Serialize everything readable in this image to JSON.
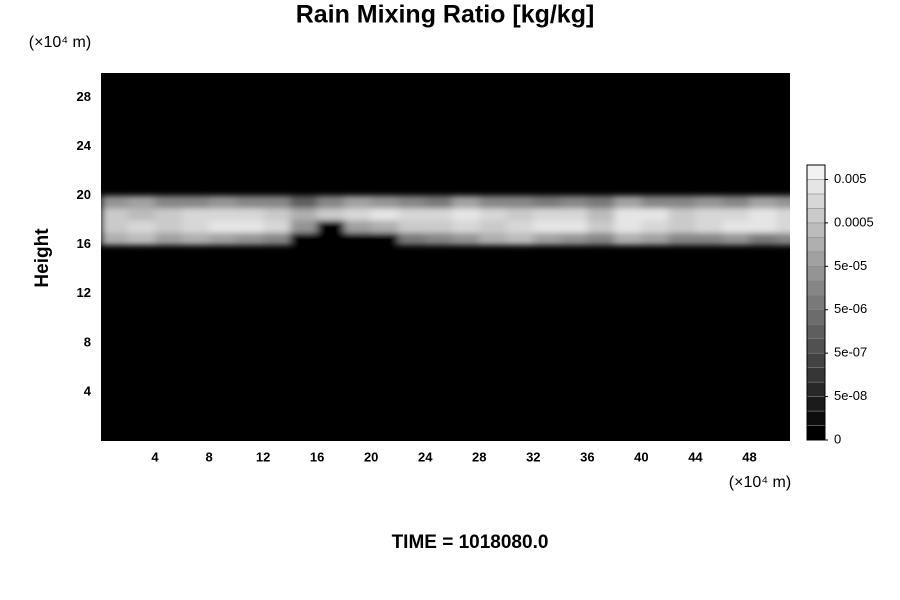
{
  "chart_data": {
    "type": "heatmap",
    "title": "Rain Mixing Ratio [kg/kg]",
    "ylabel": "Height",
    "yunit": "(×10⁴ m)",
    "xunit": "(×10⁴ m)",
    "footer": "TIME = 1018080.0",
    "xlim": [
      0,
      51
    ],
    "ylim": [
      0,
      30
    ],
    "xticks": [
      4,
      8,
      12,
      16,
      20,
      24,
      28,
      32,
      36,
      40,
      44,
      48
    ],
    "yticks": [
      4,
      8,
      12,
      16,
      20,
      24,
      28
    ],
    "background": "#000000",
    "cmap": [
      "#000000",
      "#f2f2f2"
    ],
    "x": [
      1,
      3,
      5,
      7,
      9,
      11,
      13,
      15,
      17,
      19,
      21,
      23,
      25,
      27,
      29,
      31,
      33,
      35,
      37,
      39,
      41,
      43,
      45,
      47,
      49,
      51
    ],
    "y": [
      16.5,
      17.5,
      18.5,
      19.5
    ],
    "z": [
      [
        0.0001,
        0.0002,
        5e-05,
        0.0001,
        5e-05,
        2e-05,
        1e-05,
        0,
        0,
        0,
        0,
        5e-06,
        1e-05,
        2e-05,
        0.0001,
        0.0002,
        5e-05,
        2e-05,
        1e-05,
        0.0001,
        5e-05,
        1e-05,
        1e-05,
        2e-05,
        5e-06,
        1e-05
      ],
      [
        0.0005,
        0.001,
        0.0005,
        0.001,
        0.002,
        0.002,
        0.001,
        2e-05,
        0,
        5e-05,
        0.0001,
        0.0005,
        0.0005,
        0.001,
        0.0005,
        0.001,
        0.002,
        0.002,
        0.0005,
        0.002,
        0.001,
        0.0005,
        0.001,
        0.002,
        0.002,
        0.001
      ],
      [
        0.0005,
        0.0002,
        0.0005,
        0.001,
        0.001,
        0.001,
        0.0005,
        0.0001,
        0.0005,
        0.001,
        0.002,
        0.001,
        0.001,
        0.002,
        0.001,
        0.0005,
        0.001,
        0.001,
        0.0002,
        0.002,
        0.002,
        0.0005,
        0.001,
        0.001,
        0.002,
        0.001
      ],
      [
        2e-05,
        5e-05,
        1e-05,
        1e-05,
        2e-05,
        1e-05,
        1e-05,
        1e-06,
        1e-05,
        5e-05,
        2e-05,
        1e-05,
        5e-06,
        5e-05,
        1e-05,
        1e-05,
        5e-06,
        1e-05,
        5e-06,
        5e-05,
        1e-05,
        1e-05,
        2e-05,
        1e-05,
        5e-05,
        2e-05
      ]
    ],
    "levels": [
      0,
      1e-08,
      2e-08,
      5e-08,
      1e-07,
      2e-07,
      5e-07,
      1e-06,
      2e-06,
      5e-06,
      1e-05,
      2e-05,
      5e-05,
      0.0001,
      0.0002,
      0.0005,
      0.001,
      0.002,
      0.005,
      0.01
    ],
    "colorbar_ticks": [
      0,
      {
        "value": 5e-08,
        "label": "5e-08"
      },
      {
        "value": 5e-07,
        "label": "5e-07"
      },
      {
        "value": 5e-06,
        "label": "5e-06"
      },
      {
        "value": 5e-05,
        "label": "5e-05"
      },
      0.0005,
      0.005
    ]
  }
}
